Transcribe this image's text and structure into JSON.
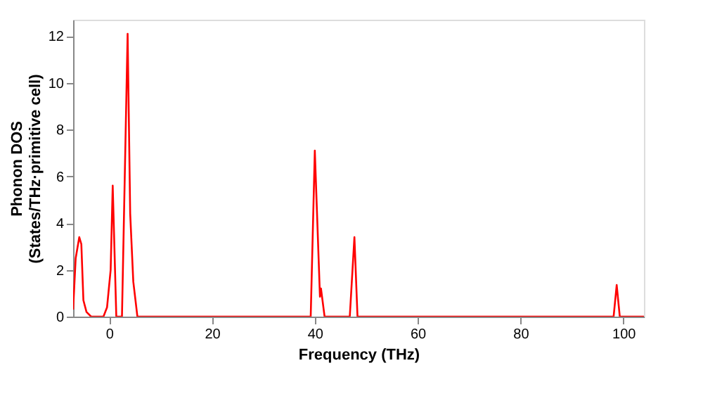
{
  "chart_data": {
    "type": "line",
    "xlabel": "Frequency (THz)",
    "ylabel": "Phonon DOS\n(States/THz·primitive cell)",
    "xlim": [
      -7,
      104
    ],
    "ylim": [
      0,
      12.7
    ],
    "xticks": [
      0,
      20,
      40,
      60,
      80,
      100
    ],
    "yticks": [
      0,
      2,
      4,
      6,
      8,
      10,
      12
    ],
    "grid": false,
    "marker": "none",
    "line_style": "solid",
    "series": [
      {
        "color": "#ff0000",
        "x": [
          -7,
          -6.5,
          -5.8,
          -5.4,
          -5,
          -4.4,
          -3.5,
          -1.1,
          -0.4,
          0.3,
          0.7,
          1.4,
          2.5,
          3.6,
          4.1,
          4.7,
          5.5,
          39.2,
          40.0,
          41.0,
          41.2,
          41.9,
          46.8,
          47.7,
          48.3,
          98.1,
          98.7,
          99.3,
          104
        ],
        "values": [
          0.3,
          2.5,
          3.4,
          3.1,
          0.7,
          0.2,
          0,
          0,
          0.4,
          2,
          5.6,
          0,
          0,
          12.1,
          4.4,
          1.5,
          0,
          0,
          7.1,
          0.85,
          1.2,
          0,
          0,
          3.4,
          0,
          0,
          1.35,
          0,
          0
        ]
      }
    ]
  }
}
